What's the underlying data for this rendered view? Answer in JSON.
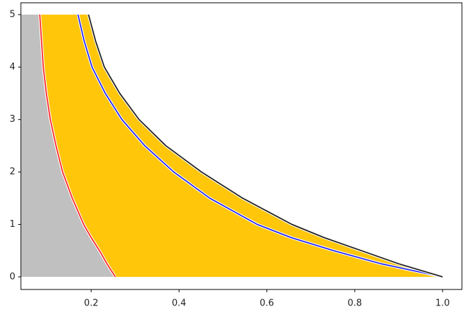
{
  "chart_data": {
    "type": "line",
    "xlim": [
      0.04,
      1.044
    ],
    "ylim": [
      -0.24,
      5.225
    ],
    "xticks": [
      0.2,
      0.4,
      0.6,
      0.8,
      {
        "value": 1,
        "label": "1.0"
      }
    ],
    "yticks": [
      0,
      1,
      2,
      3,
      4,
      5
    ],
    "grid": false,
    "fill_left_color": "#c0c0c0",
    "fill_between_color": "#ffc60a",
    "series": [
      {
        "color": "#ff2a2a",
        "x": [
          0.083,
          0.087,
          0.091,
          0.098,
          0.107,
          0.12,
          0.135,
          0.157,
          0.183,
          0.2,
          0.219,
          0.236,
          0.255
        ],
        "values": [
          5,
          4.5,
          4,
          3.5,
          3,
          2.5,
          2,
          1.5,
          1,
          0.75,
          0.5,
          0.25,
          0
        ]
      },
      {
        "color": "#2a2aff",
        "x": [
          0.17,
          0.184,
          0.202,
          0.232,
          0.27,
          0.322,
          0.388,
          0.47,
          0.578,
          0.655,
          0.752,
          0.86,
          1.0
        ],
        "values": [
          5,
          4.5,
          4,
          3.5,
          3,
          2.5,
          2,
          1.5,
          1,
          0.75,
          0.5,
          0.25,
          0
        ]
      },
      {
        "color": "#222222",
        "x": [
          0.194,
          0.21,
          0.23,
          0.265,
          0.309,
          0.37,
          0.451,
          0.545,
          0.657,
          0.73,
          0.815,
          0.9,
          1.0
        ],
        "values": [
          5,
          4.5,
          4,
          3.5,
          3,
          2.5,
          2,
          1.5,
          1,
          0.75,
          0.5,
          0.25,
          0
        ]
      }
    ]
  }
}
